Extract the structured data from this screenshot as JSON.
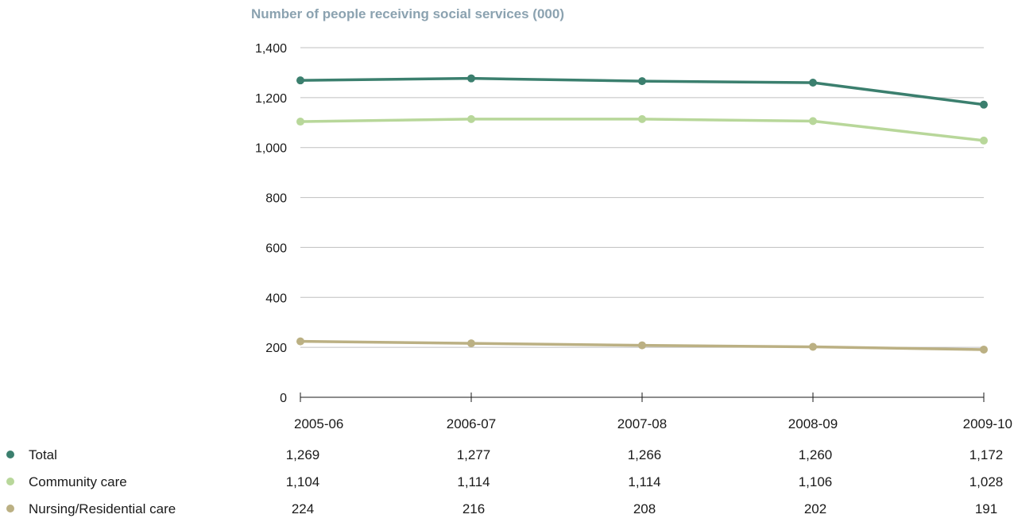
{
  "chart_data": {
    "type": "line",
    "title": "Number of people receiving social services (000)",
    "categories": [
      "2005-06",
      "2006-07",
      "2007-08",
      "2008-09",
      "2009-10"
    ],
    "ylim": [
      0,
      1400
    ],
    "yticks": [
      0,
      200,
      400,
      600,
      800,
      1000,
      1200,
      1400
    ],
    "ytick_labels": [
      "0",
      "200",
      "400",
      "600",
      "800",
      "1,000",
      "1,200",
      "1,400"
    ],
    "grid": true,
    "series": [
      {
        "name": "Total",
        "color": "#3b7f6e",
        "values": [
          1269,
          1277,
          1266,
          1260,
          1172
        ],
        "labels": [
          "1,269",
          "1,277",
          "1,266",
          "1,260",
          "1,172"
        ]
      },
      {
        "name": "Community care",
        "color": "#b8d79a",
        "values": [
          1104,
          1114,
          1114,
          1106,
          1028
        ],
        "labels": [
          "1,104",
          "1,114",
          "1,114",
          "1,106",
          "1,028"
        ]
      },
      {
        "name": "Nursing/Residential care",
        "color": "#bbb083",
        "values": [
          224,
          216,
          208,
          202,
          191
        ],
        "labels": [
          "224",
          "216",
          "208",
          "202",
          "191"
        ]
      }
    ]
  }
}
